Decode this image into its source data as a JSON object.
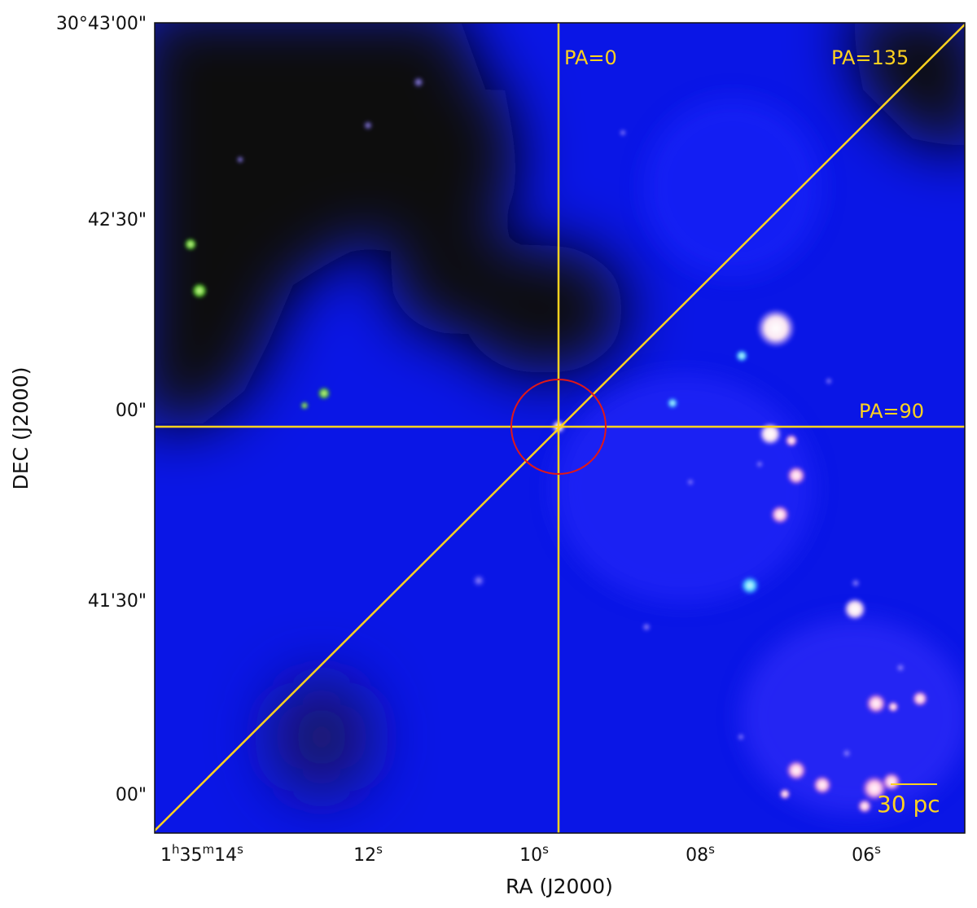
{
  "axes": {
    "xlabel": "RA (J2000)",
    "ylabel": "DEC (J2000)",
    "x_ticks": [
      {
        "label": "1h35m14s"
      },
      {
        "label": "12s"
      },
      {
        "label": "10s"
      },
      {
        "label": "08s"
      },
      {
        "label": "06s"
      }
    ],
    "y_ticks": [
      {
        "label": "30°43'00\""
      },
      {
        "label": "42'30\""
      },
      {
        "label": "00\""
      },
      {
        "label": "41'30\""
      },
      {
        "label": "00\""
      }
    ]
  },
  "overlay": {
    "line_color": "#ffd21f",
    "circle_color": "#e01818",
    "labels": {
      "pa0": "PA=0",
      "pa135": "PA=135",
      "pa90": "PA=90"
    },
    "scale_bar": "30 pc"
  },
  "colors": {
    "sky_blue": "#0a16e6",
    "dark_region": "#0b0b0b"
  }
}
